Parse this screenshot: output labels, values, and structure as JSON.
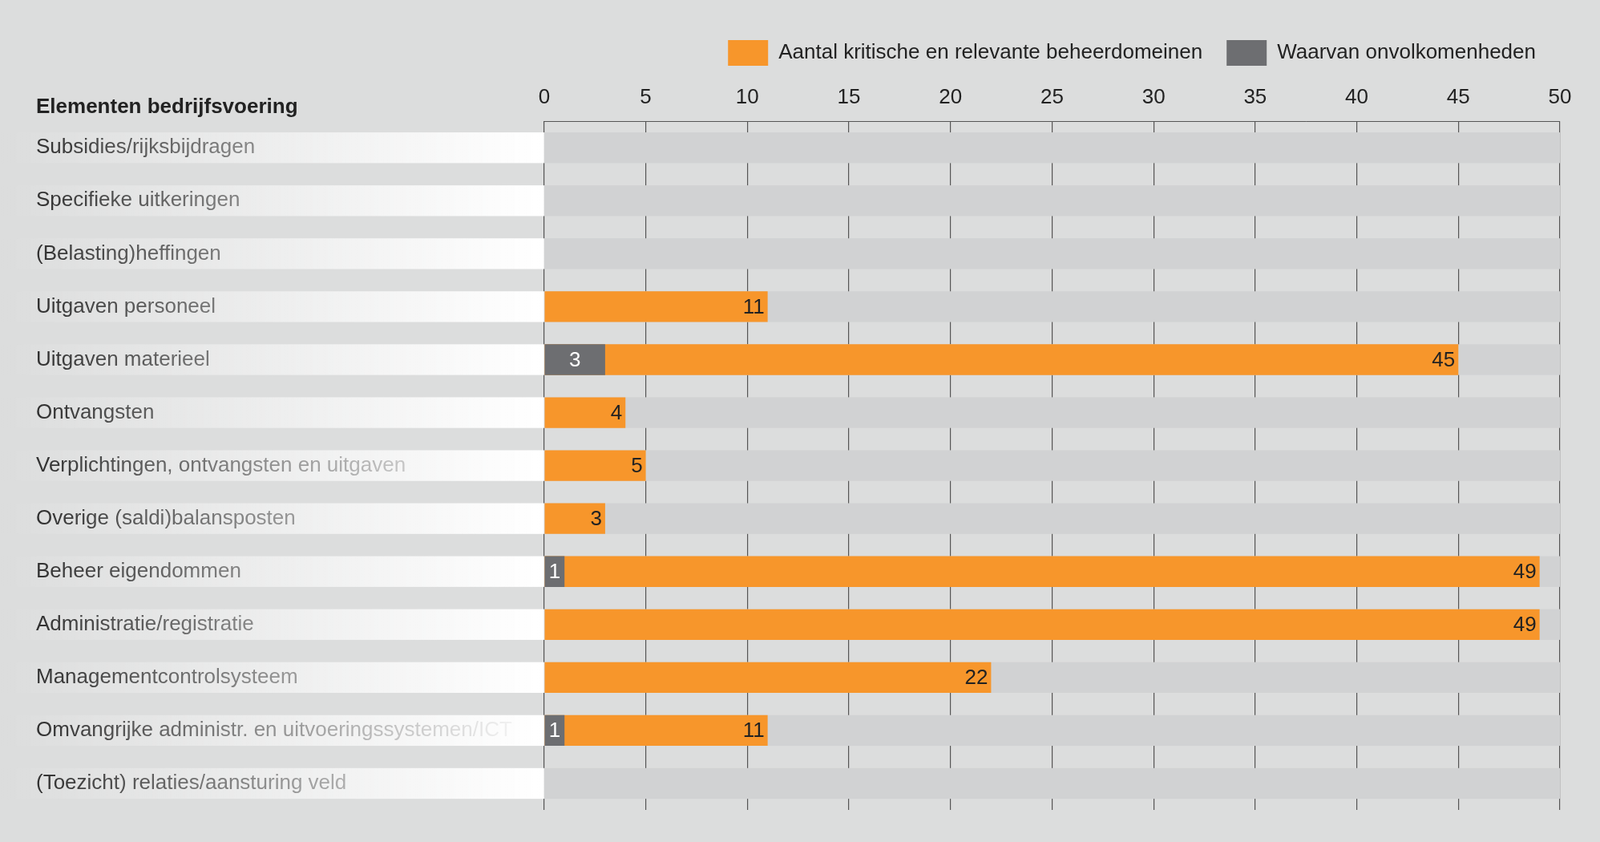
{
  "chart_data": {
    "type": "bar",
    "orientation": "horizontal",
    "ylabel": "Elementen bedrijfsvoering",
    "categories": [
      "Subsidies/rijksbijdragen",
      "Specifieke uitkeringen",
      "(Belasting)heffingen",
      "Uitgaven personeel",
      "Uitgaven materieel",
      "Ontvangsten",
      "Verplichtingen, ontvangsten en uitgaven",
      "Overige (saldi)balansposten",
      "Beheer eigendommen",
      "Administratie/registratie",
      "Managementcontrolsysteem",
      "Omvangrijke administr. en uitvoeringssystemen/ICT",
      "(Toezicht) relaties/aansturing veld"
    ],
    "series": [
      {
        "name": "Aantal kritische en relevante beheerdomeinen",
        "color": "#f7962b",
        "values": [
          null,
          null,
          null,
          11,
          45,
          4,
          5,
          3,
          49,
          49,
          22,
          11,
          null
        ]
      },
      {
        "name": "Waarvan onvolkomenheden",
        "color": "#6d6e71",
        "values": [
          null,
          null,
          null,
          null,
          3,
          null,
          null,
          null,
          1,
          null,
          null,
          1,
          null
        ]
      }
    ],
    "xlim": [
      0,
      50
    ],
    "xticks": [
      0,
      5,
      10,
      15,
      20,
      25,
      30,
      35,
      40,
      45,
      50
    ],
    "grid": true,
    "legend": "top-right",
    "data_labels": true
  }
}
